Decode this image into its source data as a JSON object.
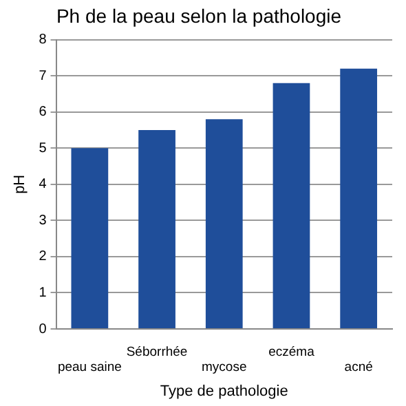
{
  "chart_data": {
    "type": "bar",
    "title": "Ph de la peau selon la pathologie",
    "xlabel": "Type de pathologie",
    "ylabel": "pH",
    "categories": [
      "peau saine",
      "Séborrhée",
      "mycose",
      "eczéma",
      "acné"
    ],
    "values": [
      5.0,
      5.5,
      5.8,
      6.8,
      7.2
    ],
    "color": "#1f4e9a",
    "ylim": [
      0,
      8
    ],
    "yticks": [
      0,
      1,
      2,
      3,
      4,
      5,
      6,
      7,
      8
    ],
    "grid": "y",
    "legend": false
  }
}
